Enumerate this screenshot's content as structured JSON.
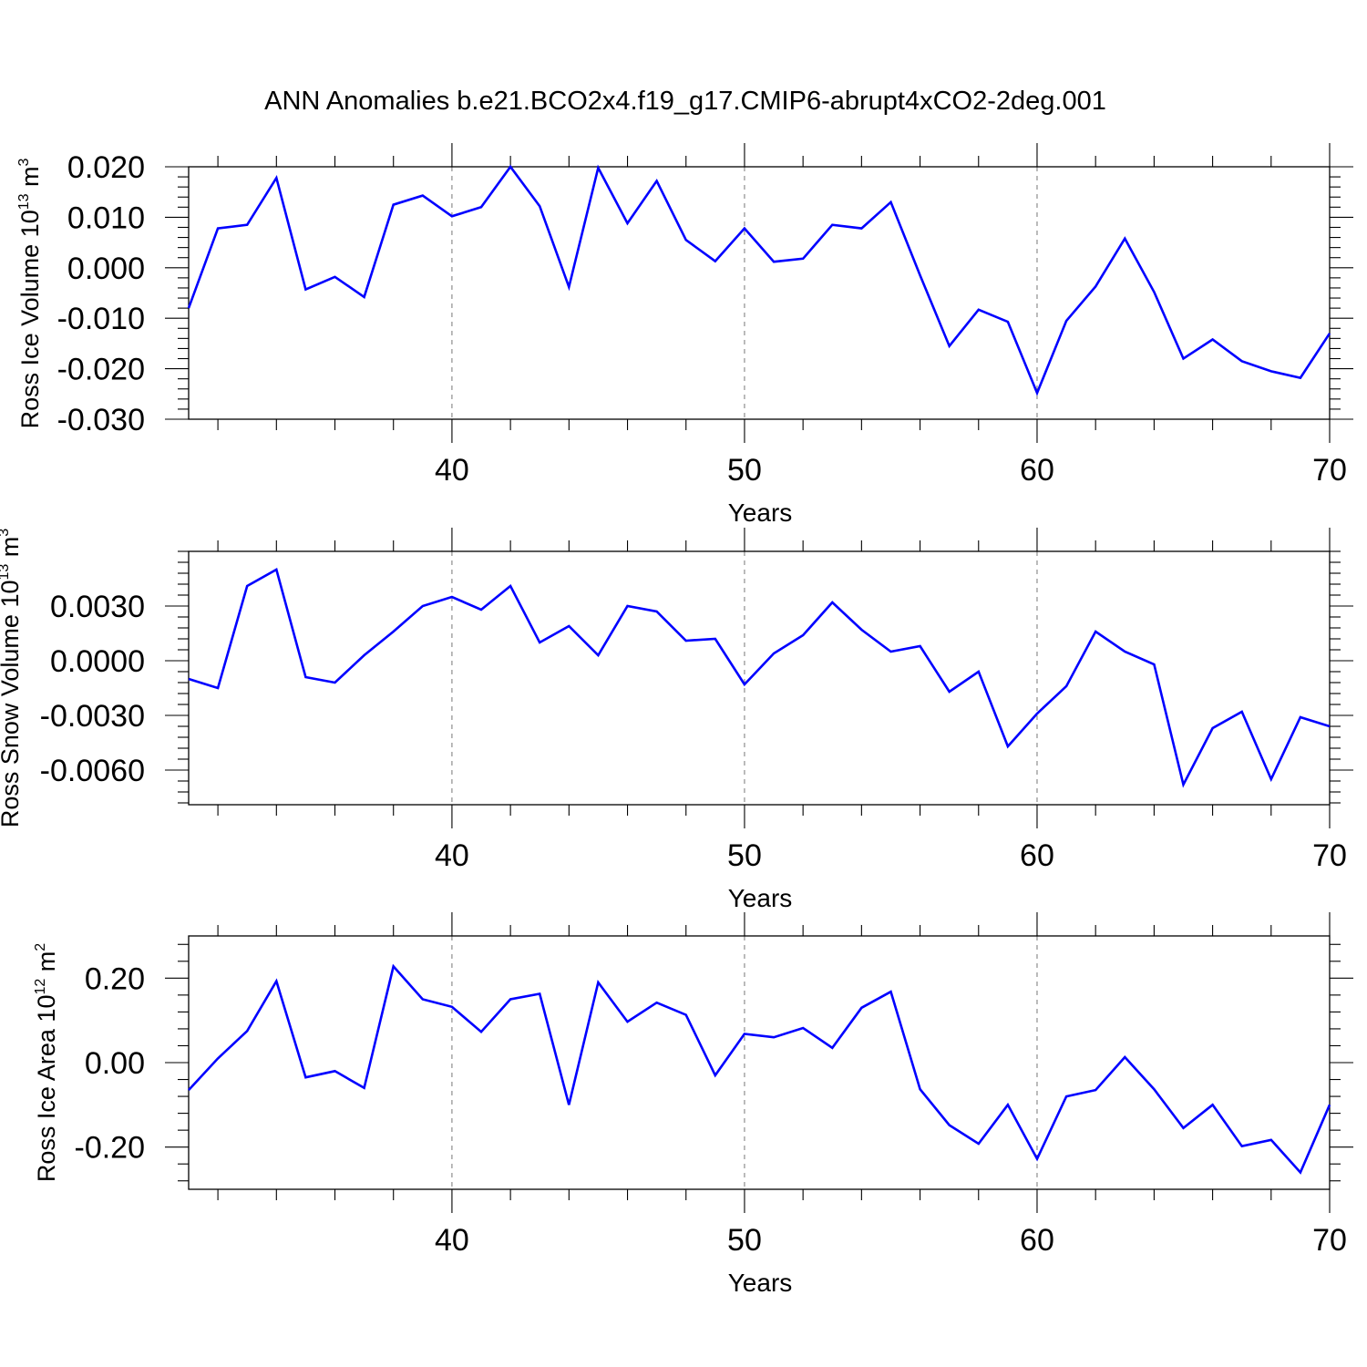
{
  "title": "ANN Anomalies b.e21.BCO2x4.f19_g17.CMIP6-abrupt4xCO2-2deg.001",
  "colors": {
    "series": "#0000ff",
    "grid": "#777777",
    "axis": "#000000"
  },
  "chart_data": [
    {
      "type": "line",
      "ylabel_main": "Ross Ice Volume 10",
      "ylabel_exp": "13",
      "ylabel_unit": " m",
      "ylabel_unit_exp": "3",
      "xlabel": "Years",
      "xlim": [
        31,
        70
      ],
      "ylim": [
        -0.03,
        0.02
      ],
      "xticks": [
        40,
        50,
        60,
        70
      ],
      "xtick_labels": [
        "40",
        "50",
        "60",
        "70"
      ],
      "yticks": [
        -0.03,
        -0.02,
        -0.01,
        0.0,
        0.01,
        0.02
      ],
      "ytick_labels": [
        "-0.030",
        "-0.020",
        "-0.010",
        "0.000",
        "0.010",
        "0.020"
      ],
      "grid": "vertical dashed at major x ticks",
      "x": [
        31,
        32,
        33,
        34,
        35,
        36,
        37,
        38,
        39,
        40,
        41,
        42,
        43,
        44,
        45,
        46,
        47,
        48,
        49,
        50,
        51,
        52,
        53,
        54,
        55,
        56,
        57,
        58,
        59,
        60,
        61,
        62,
        63,
        64,
        65,
        66,
        67,
        68,
        69,
        70
      ],
      "y": [
        -0.008,
        0.0078,
        0.0085,
        0.0178,
        -0.0043,
        -0.0018,
        -0.0058,
        0.0125,
        0.0143,
        0.0102,
        0.012,
        0.02,
        0.0122,
        -0.0038,
        0.0198,
        0.0088,
        0.0172,
        0.0055,
        0.0013,
        0.0078,
        0.0012,
        0.0018,
        0.0085,
        0.0078,
        0.013,
        -0.0015,
        -0.0155,
        -0.0083,
        -0.0107,
        -0.0248,
        -0.0105,
        -0.0037,
        0.0058,
        -0.0048,
        -0.018,
        -0.0142,
        -0.0185,
        -0.0205,
        -0.0218,
        -0.013
      ]
    },
    {
      "type": "line",
      "ylabel_main": "Ross Snow Volume 10",
      "ylabel_exp": "13",
      "ylabel_unit": " m",
      "ylabel_unit_exp": "3",
      "xlabel": "Years",
      "xlim": [
        31,
        70
      ],
      "ylim": [
        -0.0079,
        0.006
      ],
      "xticks": [
        40,
        50,
        60,
        70
      ],
      "xtick_labels": [
        "40",
        "50",
        "60",
        "70"
      ],
      "yticks": [
        -0.006,
        -0.003,
        0.0,
        0.003
      ],
      "ytick_labels": [
        "-0.0060",
        "-0.0030",
        "0.0000",
        "0.0030"
      ],
      "grid": "vertical dashed at major x ticks",
      "x": [
        31,
        32,
        33,
        34,
        35,
        36,
        37,
        38,
        39,
        40,
        41,
        42,
        43,
        44,
        45,
        46,
        47,
        48,
        49,
        50,
        51,
        52,
        53,
        54,
        55,
        56,
        57,
        58,
        59,
        60,
        61,
        62,
        63,
        64,
        65,
        66,
        67,
        68,
        69,
        70
      ],
      "y": [
        -0.001,
        -0.0015,
        0.0041,
        0.005,
        -0.0009,
        -0.0012,
        0.0003,
        0.0016,
        0.003,
        0.0035,
        0.0028,
        0.0041,
        0.001,
        0.0019,
        0.0003,
        0.003,
        0.0027,
        0.0011,
        0.0012,
        -0.0013,
        0.0004,
        0.0014,
        0.0032,
        0.0017,
        0.0005,
        0.0008,
        -0.0017,
        -0.0006,
        -0.0047,
        -0.0029,
        -0.0014,
        0.0016,
        0.0005,
        -0.0002,
        -0.0068,
        -0.0037,
        -0.0028,
        -0.0065,
        -0.0031,
        -0.0036
      ]
    },
    {
      "type": "line",
      "ylabel_main": "Ross Ice Area 10",
      "ylabel_exp": "12",
      "ylabel_unit": " m",
      "ylabel_unit_exp": "2",
      "xlabel": "Years",
      "xlim": [
        31,
        70
      ],
      "ylim": [
        -0.3,
        0.3
      ],
      "xticks": [
        40,
        50,
        60,
        70
      ],
      "xtick_labels": [
        "40",
        "50",
        "60",
        "70"
      ],
      "yticks": [
        -0.2,
        0.0,
        0.2
      ],
      "ytick_labels": [
        "-0.20",
        "0.00",
        "0.20"
      ],
      "grid": "vertical dashed at major x ticks",
      "x": [
        31,
        32,
        33,
        34,
        35,
        36,
        37,
        38,
        39,
        40,
        41,
        42,
        43,
        44,
        45,
        46,
        47,
        48,
        49,
        50,
        51,
        52,
        53,
        54,
        55,
        56,
        57,
        58,
        59,
        60,
        61,
        62,
        63,
        64,
        65,
        66,
        67,
        68,
        69,
        70
      ],
      "y": [
        -0.065,
        0.01,
        0.075,
        0.193,
        -0.035,
        -0.02,
        -0.06,
        0.228,
        0.15,
        0.132,
        0.073,
        0.15,
        0.163,
        -0.1,
        0.19,
        0.097,
        0.142,
        0.113,
        -0.03,
        0.068,
        0.06,
        0.082,
        0.035,
        0.13,
        0.168,
        -0.063,
        -0.148,
        -0.192,
        -0.1,
        -0.228,
        -0.08,
        -0.065,
        0.013,
        -0.063,
        -0.155,
        -0.1,
        -0.198,
        -0.183,
        -0.26,
        -0.1
      ]
    }
  ]
}
